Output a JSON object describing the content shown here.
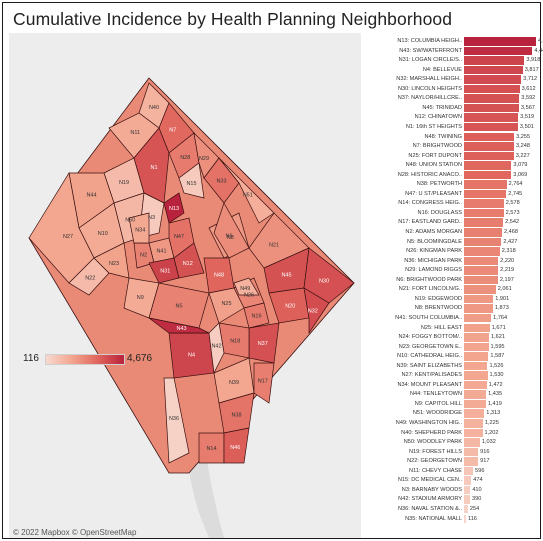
{
  "title": "Cumulative Incidence by Health Planning Neighborhood",
  "legend": {
    "min": "116",
    "max": "4,676"
  },
  "attribution": "© 2022 Mapbox © OpenStreetMap",
  "colors": {
    "low": "#f7d9cf",
    "mid": "#f3a68f",
    "high": "#b9223c",
    "frame": "#1a1a1a"
  },
  "map_labels": [
    "N40",
    "N7",
    "N11",
    "N19",
    "N44",
    "N1",
    "N28",
    "N29",
    "N10",
    "N50",
    "N3",
    "N24",
    "N13",
    "N15",
    "N33",
    "N51",
    "N27",
    "N41",
    "N2",
    "N47",
    "N8",
    "N22",
    "N23",
    "N31",
    "N12",
    "N48",
    "N21",
    "N26",
    "N6",
    "N16",
    "N45",
    "N30",
    "N9",
    "N25",
    "N20",
    "N32",
    "N5",
    "N4",
    "N43",
    "N37",
    "N18",
    "N39",
    "N42",
    "N17",
    "N38",
    "N36",
    "N14",
    "N46",
    "N49",
    "N34"
  ],
  "chart_data": {
    "type": "bar",
    "title": "Cumulative Incidence by Health Planning Neighborhood",
    "orientation": "horizontal",
    "categories": [
      "N13: COLUMBIA HEIGH..",
      "N43: SW/WATERFRONT",
      "N31: LOGAN CIRCLE/S..",
      "N4: BELLEVUE",
      "N32: MARSHALL HEIGH..",
      "N30: LINCOLN HEIGHTS",
      "N37: NAYLOR/HILLCRE..",
      "N45: TRINIDAD",
      "N12: CHINATOWN",
      "N1: 16th ST HEIGHTS",
      "N48: TWINING",
      "N7: BRIGHTWOOD",
      "N25: FORT DUPONT",
      "N48: UNION STATION",
      "N28: HISTORIC ANACO..",
      "N38: PETWORTH",
      "N47: U ST/PLEASANT",
      "N14: CONGRESS HEIG..",
      "N16: DOUGLASS",
      "N17: EASTLAND GARD..",
      "N2: ADAMS MORGAN",
      "N5: BLOOMINGDALE",
      "N26: KINGMAN PARK",
      "N36: MICHIGAN PARK",
      "N29: LAMOND RIGGS",
      "N6: BRIGHTWOOD PARK",
      "N21: FORT LINCOLN/G..",
      "N19: EDGEWOOD",
      "N8: BRENTWOOD",
      "N41: SOUTH COLUMBIA..",
      "N25: HILL EAST",
      "N24: FOGGY BOTTOM/..",
      "N23: GEORGETOWN E..",
      "N10: CATHEDRAL HEIG..",
      "N39: SAINT ELIZABETHS",
      "N27: KENT/PALISADES",
      "N34: MOUNT PLEASANT",
      "N44: TENLEYTOWN",
      "N9: CAPITOL HILL",
      "N51: WOODRIDGE",
      "N49: WASHINGTON HIG..",
      "N40: SHEPHERD PARK",
      "N50: WOODLEY PARK",
      "N19: FOREST HILLS",
      "N22: GEORGETOWN",
      "N11: CHEVY CHASE",
      "N15: DC MEDICAL CEN..",
      "N3: BARNABY WOODS",
      "N42: STADIUM ARMORY",
      "N36: NAVAL STATION &..",
      "N35: NATIONAL MALL"
    ],
    "values": [
      4676,
      4440,
      3918,
      3817,
      3712,
      3612,
      3592,
      3567,
      3519,
      3501,
      3255,
      3248,
      3227,
      3079,
      3069,
      2764,
      2745,
      2578,
      2573,
      2542,
      2468,
      2427,
      2318,
      2220,
      2219,
      2197,
      2061,
      1901,
      1873,
      1764,
      1671,
      1621,
      1595,
      1587,
      1526,
      1530,
      1472,
      1435,
      1419,
      1313,
      1225,
      1202,
      1032,
      916,
      917,
      596,
      474,
      410,
      390,
      254,
      116
    ],
    "value_labels": [
      "4,676",
      "4,440",
      "3,918",
      "3,817",
      "3,712",
      "3,612",
      "3,592",
      "3,567",
      "3,519",
      "3,501",
      "3,255",
      "3,248",
      "3,227",
      "3,079",
      "3,069",
      "2,764",
      "2,745",
      "2,578",
      "2,573",
      "2,542",
      "2,468",
      "2,427",
      "2,318",
      "2,220",
      "2,219",
      "2,197",
      "2,061",
      "1,901",
      "1,873",
      "1,764",
      "1,671",
      "1,621",
      "1,595",
      "1,587",
      "1,526",
      "1,530",
      "1,472",
      "1,435",
      "1,419",
      "1,313",
      "1,225",
      "1,202",
      "1,032",
      "916",
      "917",
      "596",
      "474",
      "410",
      "390",
      "254",
      "116"
    ],
    "xlim": [
      0,
      4676
    ]
  }
}
